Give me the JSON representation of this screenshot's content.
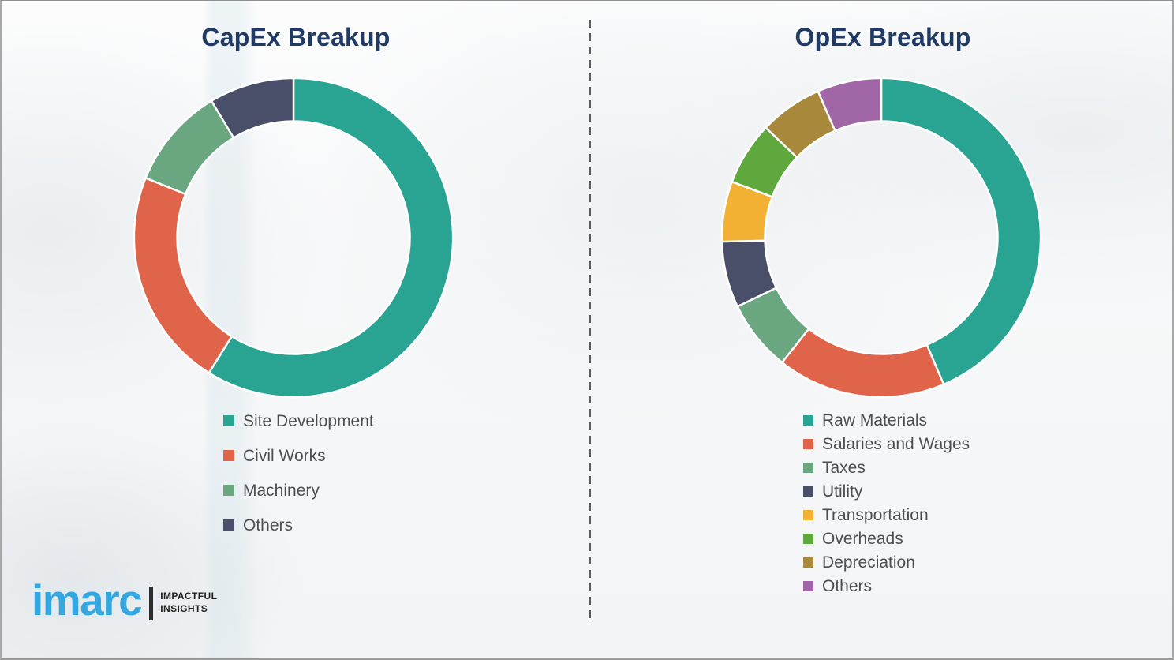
{
  "page": {
    "background_color": "#f6f7f8",
    "border_color": "#a8a8a8",
    "divider": {
      "style": "dashed-vertical",
      "color": "#5b5b5b"
    }
  },
  "chart_data": [
    {
      "type": "pie",
      "subtype": "donut",
      "title": "CapEx Breakup",
      "title_color": "#203a66",
      "categories": [
        "Site Development",
        "Civil Works",
        "Machinery",
        "Others"
      ],
      "values": [
        58.9,
        22.2,
        10.3,
        8.6
      ],
      "values_unit": "percent (estimated from arc angles; no data labels shown)",
      "colors": [
        "#2aa492",
        "#e0644a",
        "#6aa780",
        "#4a4f69"
      ],
      "start_angle_deg": 0,
      "direction": "clockwise",
      "inner_radius_ratio": 0.73,
      "legend_position": "below-left",
      "slice_separator_color": "#ffffff"
    },
    {
      "type": "pie",
      "subtype": "donut",
      "title": "OpEx Breakup",
      "title_color": "#203a66",
      "categories": [
        "Raw Materials",
        "Salaries and Wages",
        "Taxes",
        "Utility",
        "Transportation",
        "Overheads",
        "Depreciation",
        "Others"
      ],
      "values": [
        43.6,
        17.1,
        7.2,
        6.7,
        6.1,
        6.4,
        6.4,
        6.5
      ],
      "values_unit": "percent (estimated from arc angles; no data labels shown)",
      "colors": [
        "#2aa492",
        "#e0644a",
        "#6aa780",
        "#4a4f69",
        "#f2b132",
        "#5fa83e",
        "#a8893c",
        "#a066a6"
      ],
      "start_angle_deg": 0,
      "direction": "clockwise",
      "inner_radius_ratio": 0.73,
      "legend_position": "below-left",
      "slice_separator_color": "#ffffff"
    }
  ],
  "logo": {
    "brand": "imarc",
    "brand_color": "#34a7e0",
    "tagline_line1": "IMPACTFUL",
    "tagline_line2": "INSIGHTS"
  }
}
